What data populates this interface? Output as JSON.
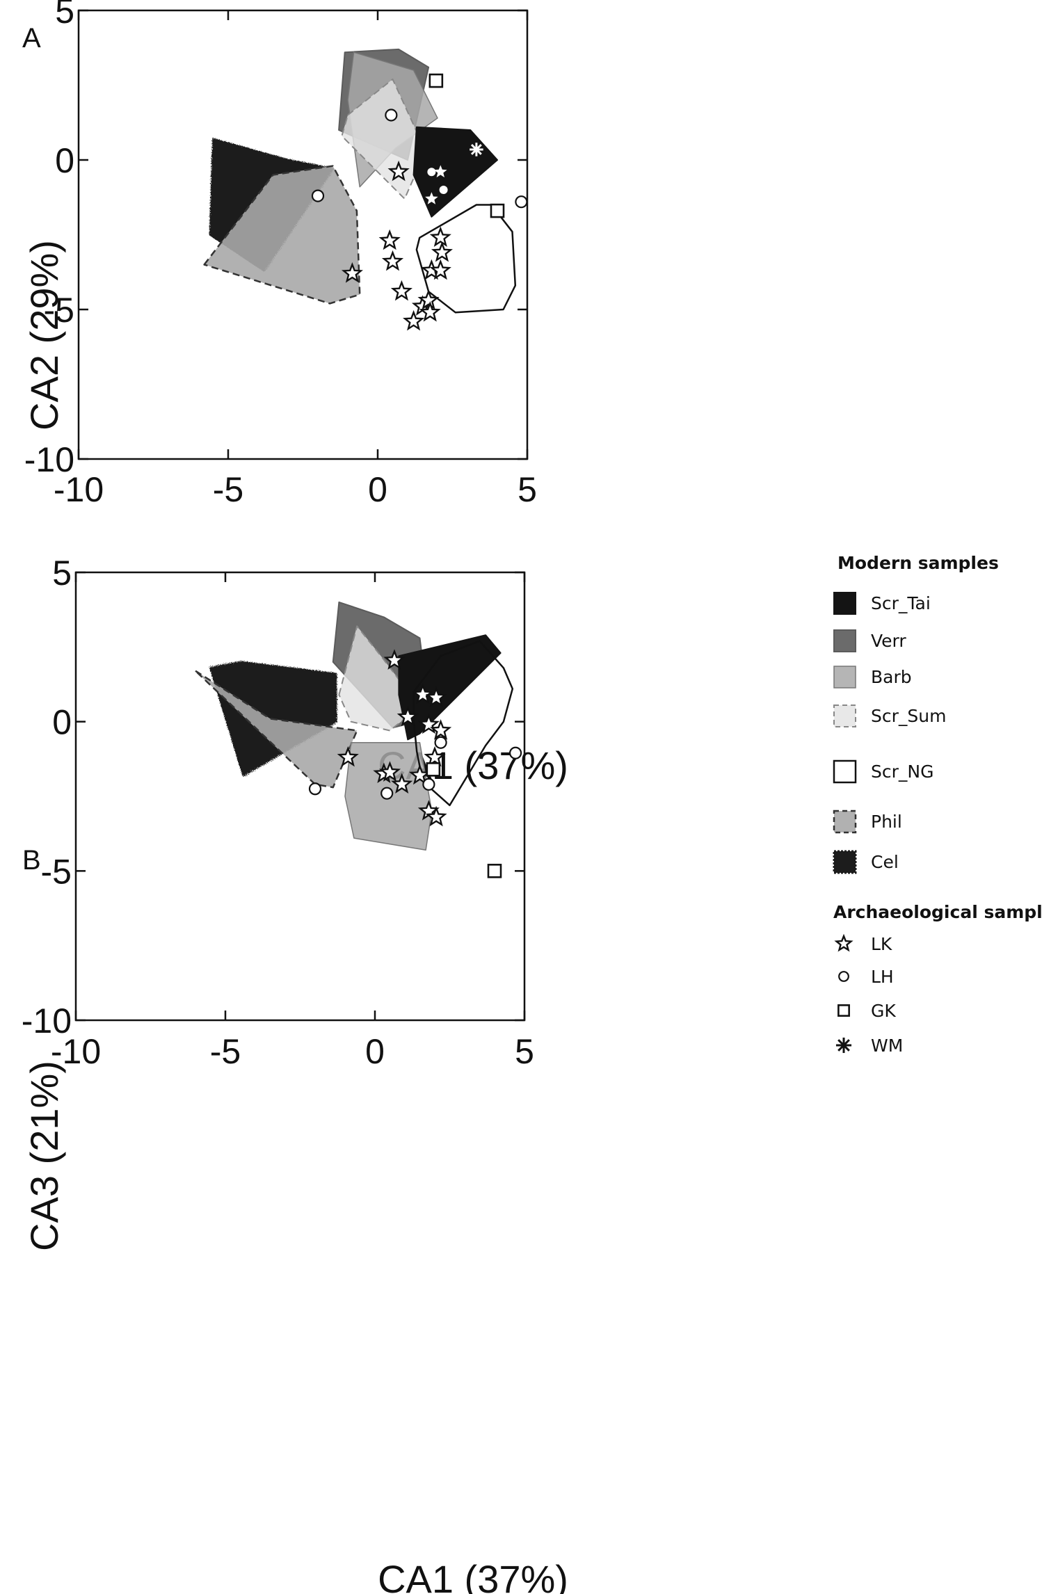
{
  "chart_data": [
    {
      "panel_label": "A",
      "type": "scatter",
      "xlabel": "CA1 (37%)",
      "ylabel": "CA2 (29%)",
      "xlim": [
        -10,
        5
      ],
      "ylim": [
        -10,
        5
      ],
      "xticks": [
        "-10",
        "-5",
        "0",
        "5"
      ],
      "yticks": [
        "-10",
        "-5",
        "0",
        "5"
      ],
      "grid": false,
      "hulls": [
        {
          "group": "Cel",
          "style": "cel",
          "points": [
            [
              -5.5,
              0.7
            ],
            [
              -3.0,
              0.0
            ],
            [
              -1.5,
              -0.3
            ],
            [
              -3.8,
              -3.7
            ],
            [
              -5.6,
              -2.5
            ]
          ]
        },
        {
          "group": "Verr",
          "style": "verr",
          "points": [
            [
              -1.1,
              3.6
            ],
            [
              0.7,
              3.7
            ],
            [
              1.7,
              3.1
            ],
            [
              1.0,
              0.0
            ],
            [
              -1.3,
              1.0
            ]
          ]
        },
        {
          "group": "Barb",
          "style": "barb",
          "points": [
            [
              -0.8,
              3.6
            ],
            [
              1.2,
              3.0
            ],
            [
              2.0,
              1.4
            ],
            [
              0.6,
              0.4
            ],
            [
              -0.6,
              -0.9
            ],
            [
              -1.0,
              2.0
            ]
          ]
        },
        {
          "group": "Scr_Sum",
          "style": "sum",
          "points": [
            [
              -1.0,
              1.5
            ],
            [
              0.5,
              2.7
            ],
            [
              1.6,
              0.3
            ],
            [
              0.9,
              -1.3
            ],
            [
              -1.2,
              0.8
            ]
          ]
        },
        {
          "group": "Scr_Tai",
          "style": "tai",
          "points": [
            [
              1.3,
              1.1
            ],
            [
              3.1,
              1.0
            ],
            [
              4.0,
              0.0
            ],
            [
              1.8,
              -1.9
            ],
            [
              1.2,
              -0.5
            ]
          ]
        },
        {
          "group": "Phil",
          "style": "phil",
          "points": [
            [
              -5.8,
              -3.5
            ],
            [
              -3.5,
              -0.5
            ],
            [
              -1.5,
              -0.2
            ],
            [
              -0.7,
              -1.7
            ],
            [
              -0.6,
              -4.5
            ],
            [
              -1.6,
              -4.8
            ]
          ]
        },
        {
          "group": "Scr_NG",
          "style": "ng",
          "points": [
            [
              1.4,
              -2.6
            ],
            [
              3.3,
              -1.5
            ],
            [
              3.8,
              -1.5
            ],
            [
              4.5,
              -2.4
            ],
            [
              4.6,
              -4.2
            ],
            [
              4.2,
              -5.0
            ],
            [
              2.6,
              -5.1
            ],
            [
              1.7,
              -4.4
            ],
            [
              1.3,
              -3.0
            ]
          ]
        }
      ],
      "points": [
        {
          "group": "LK",
          "x": 0.7,
          "y": -0.4,
          "fill": "white"
        },
        {
          "group": "LK",
          "x": 0.4,
          "y": -2.7,
          "fill": "white"
        },
        {
          "group": "LK",
          "x": 0.5,
          "y": -3.4,
          "fill": "white"
        },
        {
          "group": "LK",
          "x": 0.8,
          "y": -4.4,
          "fill": "white"
        },
        {
          "group": "LK",
          "x": 1.2,
          "y": -5.4,
          "fill": "white"
        },
        {
          "group": "LK",
          "x": 1.5,
          "y": -4.9,
          "fill": "white"
        },
        {
          "group": "LK",
          "x": 1.7,
          "y": -4.7,
          "fill": "white"
        },
        {
          "group": "LK",
          "x": 1.75,
          "y": -5.1,
          "fill": "white"
        },
        {
          "group": "LK",
          "x": 1.8,
          "y": -3.7,
          "fill": "white"
        },
        {
          "group": "LK",
          "x": 2.1,
          "y": -3.7,
          "fill": "white"
        },
        {
          "group": "LK",
          "x": 2.15,
          "y": -3.1,
          "fill": "white"
        },
        {
          "group": "LK",
          "x": 2.1,
          "y": -2.6,
          "fill": "white"
        },
        {
          "group": "LK",
          "x": -0.85,
          "y": -3.8,
          "fill": "white"
        },
        {
          "group": "LK",
          "x": 2.1,
          "y": -0.4,
          "fill": "dark"
        },
        {
          "group": "LK",
          "x": 1.8,
          "y": -1.3,
          "fill": "dark"
        },
        {
          "group": "LH",
          "x": 0.45,
          "y": 1.5,
          "fill": "white"
        },
        {
          "group": "LH",
          "x": -2.0,
          "y": -1.2,
          "fill": "white"
        },
        {
          "group": "LH",
          "x": 4.8,
          "y": -1.4,
          "fill": "white"
        },
        {
          "group": "LH",
          "x": 1.8,
          "y": -0.4,
          "fill": "dark"
        },
        {
          "group": "LH",
          "x": 2.2,
          "y": -1.0,
          "fill": "dark"
        },
        {
          "group": "GK",
          "x": 1.95,
          "y": 2.65,
          "fill": "white"
        },
        {
          "group": "GK",
          "x": 4.0,
          "y": -1.7,
          "fill": "white"
        },
        {
          "group": "WM",
          "x": 3.3,
          "y": 0.35,
          "fill": "dark"
        }
      ]
    },
    {
      "panel_label": "B",
      "type": "scatter",
      "xlabel": "CA1 (37%)",
      "ylabel": "CA3 (21%)",
      "xlim": [
        -10,
        5
      ],
      "ylim": [
        -10,
        5
      ],
      "xticks": [
        "-10",
        "-5",
        "0",
        "5"
      ],
      "yticks": [
        "-10",
        "-5",
        "0",
        "5"
      ],
      "grid": false,
      "hulls": [
        {
          "group": "Cel",
          "style": "cel",
          "points": [
            [
              -5.5,
              1.8
            ],
            [
              -4.5,
              2.0
            ],
            [
              -1.3,
              1.6
            ],
            [
              -1.3,
              0.0
            ],
            [
              -4.4,
              -1.8
            ]
          ]
        },
        {
          "group": "Verr",
          "style": "verr",
          "points": [
            [
              -1.2,
              4.0
            ],
            [
              0.3,
              3.5
            ],
            [
              1.5,
              2.8
            ],
            [
              1.7,
              1.2
            ],
            [
              1.4,
              0.0
            ],
            [
              0.6,
              -0.2
            ],
            [
              -1.4,
              2.0
            ]
          ]
        },
        {
          "group": "Scr_Sum",
          "style": "sum",
          "points": [
            [
              -1.2,
              0.9
            ],
            [
              -0.6,
              3.2
            ],
            [
              0.2,
              2.2
            ],
            [
              1.5,
              0.5
            ],
            [
              0.5,
              -0.3
            ],
            [
              -0.8,
              0.0
            ]
          ]
        },
        {
          "group": "Scr_Tai",
          "style": "tai",
          "points": [
            [
              0.8,
              2.2
            ],
            [
              3.7,
              2.9
            ],
            [
              4.2,
              2.3
            ],
            [
              1.5,
              -0.4
            ],
            [
              1.1,
              -0.6
            ],
            [
              0.8,
              0.9
            ]
          ]
        },
        {
          "group": "Phil",
          "style": "phil",
          "points": [
            [
              -6.0,
              1.7
            ],
            [
              -3.5,
              0.1
            ],
            [
              -0.6,
              -0.3
            ],
            [
              -1.4,
              -2.2
            ],
            [
              -2.0,
              -2.1
            ]
          ]
        },
        {
          "group": "Barb",
          "style": "barb",
          "points": [
            [
              -0.8,
              -0.7
            ],
            [
              1.5,
              -0.7
            ],
            [
              1.9,
              -3.0
            ],
            [
              1.7,
              -4.3
            ],
            [
              -0.7,
              -3.9
            ],
            [
              -1.0,
              -2.5
            ]
          ]
        },
        {
          "group": "Scr_NG",
          "style": "ng",
          "points": [
            [
              1.3,
              1.0
            ],
            [
              2.2,
              2.2
            ],
            [
              3.5,
              2.7
            ],
            [
              4.3,
              1.8
            ],
            [
              4.6,
              1.1
            ],
            [
              4.3,
              0.0
            ],
            [
              3.7,
              -0.8
            ],
            [
              2.5,
              -2.8
            ],
            [
              1.6,
              -2.0
            ],
            [
              1.4,
              -1.0
            ],
            [
              1.3,
              0.0
            ]
          ]
        }
      ],
      "points": [
        {
          "group": "LK",
          "x": 0.65,
          "y": 2.05,
          "fill": "white"
        },
        {
          "group": "LK",
          "x": 1.6,
          "y": 0.9,
          "fill": "white"
        },
        {
          "group": "LK",
          "x": 2.05,
          "y": 0.8,
          "fill": "white"
        },
        {
          "group": "LK",
          "x": 1.1,
          "y": 0.15,
          "fill": "white"
        },
        {
          "group": "LK",
          "x": 1.8,
          "y": -0.1,
          "fill": "white"
        },
        {
          "group": "LK",
          "x": 2.2,
          "y": -0.3,
          "fill": "white"
        },
        {
          "group": "LK",
          "x": 2.0,
          "y": -1.2,
          "fill": "white"
        },
        {
          "group": "LK",
          "x": 0.3,
          "y": -1.75,
          "fill": "white"
        },
        {
          "group": "LK",
          "x": 0.5,
          "y": -1.7,
          "fill": "white"
        },
        {
          "group": "LK",
          "x": 0.9,
          "y": -2.1,
          "fill": "white"
        },
        {
          "group": "LK",
          "x": 1.5,
          "y": -1.8,
          "fill": "white"
        },
        {
          "group": "LK",
          "x": 1.8,
          "y": -3.0,
          "fill": "white"
        },
        {
          "group": "LK",
          "x": 2.05,
          "y": -3.2,
          "fill": "white"
        },
        {
          "group": "LK",
          "x": -0.9,
          "y": -1.2,
          "fill": "white"
        },
        {
          "group": "LH",
          "x": 2.2,
          "y": -0.7,
          "fill": "white"
        },
        {
          "group": "LH",
          "x": 1.8,
          "y": -2.1,
          "fill": "white"
        },
        {
          "group": "LH",
          "x": 0.4,
          "y": -2.4,
          "fill": "white"
        },
        {
          "group": "LH",
          "x": -2.0,
          "y": -2.25,
          "fill": "white"
        },
        {
          "group": "LH",
          "x": 4.7,
          "y": -1.05,
          "fill": "white"
        },
        {
          "group": "GK",
          "x": 1.95,
          "y": -1.6,
          "fill": "white"
        },
        {
          "group": "GK",
          "x": 4.0,
          "y": -5.0,
          "fill": "white"
        },
        {
          "group": "WM",
          "x": 3.3,
          "y": 0.15,
          "fill": "dark"
        }
      ]
    }
  ],
  "legend": {
    "modern_title": "Modern samples",
    "modern_items": [
      {
        "label": "Scr_Tai",
        "style": "tai"
      },
      {
        "label": "Verr",
        "style": "verr"
      },
      {
        "label": "Barb",
        "style": "barb"
      },
      {
        "label": "Scr_Sum",
        "style": "sum"
      },
      {
        "label": "Scr_NG",
        "style": "ng"
      },
      {
        "label": "Phil",
        "style": "phil"
      },
      {
        "label": "Cel",
        "style": "cel"
      }
    ],
    "arch_title": "Archaeological samples",
    "arch_items": [
      {
        "label": "LK",
        "marker": "star"
      },
      {
        "label": "LH",
        "marker": "circle"
      },
      {
        "label": "GK",
        "marker": "square"
      },
      {
        "label": "WM",
        "marker": "asterisk"
      }
    ]
  },
  "colors": {
    "tai": "#141414",
    "verr": "#5b5b5b",
    "barb": "#a8a8a8",
    "sum": "#e2e2e2",
    "ng": "#ffffff",
    "phil": "#a8a8a8",
    "cel": "#1c1c1c",
    "axis": "#111111"
  }
}
